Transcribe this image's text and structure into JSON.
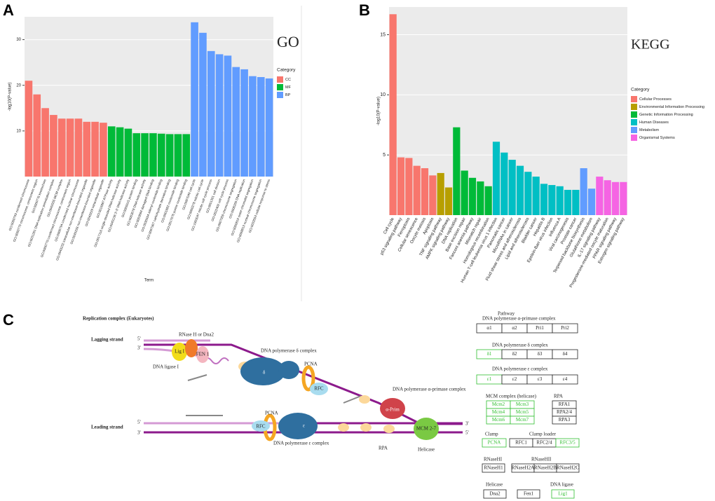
{
  "panel_labels": [
    "A",
    "B",
    "C"
  ],
  "chart_data": [
    {
      "type": "bar",
      "annotation": "GO",
      "y_label": "-log10(P-value)",
      "x_label": "Term",
      "legend_title": "Category",
      "categories": [
        "GO:0000793 condensed chromosome",
        "GO:0000775 chromosome, centromeric region",
        "GO:0000776 kinetochore",
        "GO:0031261 DNA replication preinitiation complex",
        "GO:0042555 MCM complex",
        "GO:0000779 condensed chromosome, centromeric region",
        "GO:0000794 condensed nuclear chromosome",
        "GO:0043232 intracellular non-membrane-bounded organelle",
        "GO:0043228 non-membrane-bounded organelle",
        "GO:0043229 intracellular organelle",
        "GO:0016887 ATPase activity",
        "GO:0017116 single-stranded DNA helicase activity",
        "GO:0043138 3'-5' DNA helicase activity",
        "GO:0005515 protein binding",
        "GO:0003678 DNA helicase activity",
        "GO:0003684 damaged DNA binding",
        "GO:0030554 adenyl nucleotide binding",
        "GO:0097367 carbohydrate derivative binding",
        "GO:0001882 nucleoside binding",
        "GO:0017076 purine nucleotide binding",
        "GO:0007049 cell cycle",
        "GO:0000278 mitotic cell cycle",
        "GO:1903047 mitotic cell cycle process",
        "GO:0051301 cell division",
        "GO:0022402 cell cycle process",
        "GO:0007059 chromosome segregation",
        "GO:0006260 DNA replication",
        "GO:0000819 sister chromatid segregation",
        "GO:0098813 nuclear chromosome segregation",
        "GO:0033554 cellular response to stress"
      ],
      "series": [
        {
          "name": "CC",
          "color": "#f8766d",
          "values": [
            21,
            18,
            15,
            13.5,
            12.7,
            12.7,
            12.7,
            12,
            12,
            11.8,
            null,
            null,
            null,
            null,
            null,
            null,
            null,
            null,
            null,
            null,
            null,
            null,
            null,
            null,
            null,
            null,
            null,
            null,
            null,
            null
          ]
        },
        {
          "name": "MF",
          "color": "#00ba38",
          "values": [
            null,
            null,
            null,
            null,
            null,
            null,
            null,
            null,
            null,
            null,
            11,
            10.8,
            10.5,
            9.5,
            9.5,
            9.5,
            9.4,
            9.3,
            9.3,
            9.3,
            null,
            null,
            null,
            null,
            null,
            null,
            null,
            null,
            null,
            null
          ]
        },
        {
          "name": "BP",
          "color": "#619cff",
          "values": [
            null,
            null,
            null,
            null,
            null,
            null,
            null,
            null,
            null,
            null,
            null,
            null,
            null,
            null,
            null,
            null,
            null,
            null,
            null,
            null,
            33.8,
            31.5,
            27.5,
            26.8,
            26.5,
            24,
            23.5,
            22,
            21.8,
            21.5
          ]
        }
      ],
      "ylim": [
        0,
        35
      ],
      "yticks": [
        10,
        20,
        30
      ],
      "grid": true
    },
    {
      "type": "bar",
      "annotation": "KEGG",
      "y_label": "-log10(P-value)",
      "legend_title": "Category",
      "categories": [
        "Cell cycle",
        "p53 signaling pathway",
        "Ferroptosis",
        "Cellular senescence",
        "Oocyte meiosis",
        "Apoptosis",
        "TNF signaling pathway",
        "AMPK signaling pathway",
        "DNA replication",
        "Base excision repair",
        "Fanconi anemia pathway",
        "Mismatch repair",
        "Homologous recombination",
        "Human T-cell leukemia virus 1 infection",
        "Pancreatic cancer",
        "MicroRNAs in cancer",
        "Fluid shear stress and atherosclerosis",
        "Lipid and atherosclerosis",
        "Bladder cancer",
        "Hepatitis B",
        "Epstein-Barr virus infection",
        "Influenza A",
        "Viral carcinogenesis",
        "Prostate cancer",
        "Terpenoid backbone biosynthesis",
        "Glutathione metabolism",
        "IL-17 signaling pathway",
        "Progesterone-mediated oocyte maturation",
        "PPAR signaling pathway",
        "Estrogen signaling pathway"
      ],
      "series": [
        {
          "name": "Cellular Processes",
          "color": "#f8766d",
          "values": [
            16.7,
            4.8,
            4.75,
            4.1,
            3.9,
            3.3,
            null,
            null,
            null,
            null,
            null,
            null,
            null,
            null,
            null,
            null,
            null,
            null,
            null,
            null,
            null,
            null,
            null,
            null,
            null,
            null,
            null,
            null,
            null,
            null
          ]
        },
        {
          "name": "Environmental Information Processing",
          "color": "#b79f00",
          "values": [
            null,
            null,
            null,
            null,
            null,
            null,
            3.5,
            2.3,
            null,
            null,
            null,
            null,
            null,
            null,
            null,
            null,
            null,
            null,
            null,
            null,
            null,
            null,
            null,
            null,
            null,
            null,
            null,
            null,
            null,
            null
          ]
        },
        {
          "name": "Genetic Information Processing",
          "color": "#00ba38",
          "values": [
            null,
            null,
            null,
            null,
            null,
            null,
            null,
            null,
            7.3,
            3.7,
            3.1,
            2.8,
            2.4,
            null,
            null,
            null,
            null,
            null,
            null,
            null,
            null,
            null,
            null,
            null,
            null,
            null,
            null,
            null,
            null,
            null
          ]
        },
        {
          "name": "Human Diseases",
          "color": "#00bfc4",
          "values": [
            null,
            null,
            null,
            null,
            null,
            null,
            null,
            null,
            null,
            null,
            null,
            null,
            null,
            6.1,
            5.2,
            4.6,
            4.1,
            3.6,
            3.2,
            2.6,
            2.5,
            2.4,
            2.1,
            2.1,
            null,
            null,
            null,
            null,
            null,
            null
          ]
        },
        {
          "name": "Metabolism",
          "color": "#619cff",
          "values": [
            null,
            null,
            null,
            null,
            null,
            null,
            null,
            null,
            null,
            null,
            null,
            null,
            null,
            null,
            null,
            null,
            null,
            null,
            null,
            null,
            null,
            null,
            null,
            null,
            3.9,
            2.2,
            null,
            null,
            null,
            null
          ]
        },
        {
          "name": "Organismal Systems",
          "color": "#f564e3",
          "values": [
            null,
            null,
            null,
            null,
            null,
            null,
            null,
            null,
            null,
            null,
            null,
            null,
            null,
            null,
            null,
            null,
            null,
            null,
            null,
            null,
            null,
            null,
            null,
            null,
            null,
            null,
            3.2,
            2.9,
            2.75,
            2.75
          ]
        }
      ],
      "ylim": [
        0,
        17.3
      ],
      "yticks": [
        5,
        10,
        15
      ],
      "grid": true
    }
  ],
  "diagram": {
    "labels": [
      "Replication complex (Eukaryotes)",
      "Lagging strand",
      "Leading strand",
      "5'",
      "3'",
      "5'",
      "3'",
      "3'",
      "5'",
      "RNase H or Dna2",
      "Lig I",
      "FEN 1",
      "DNA ligase I",
      "DNA polymerase δ complex",
      "δ",
      "PCNA",
      "RFC",
      "DNA polymerase α-primase complex",
      "α-Prim",
      "MCM 2-7",
      "Helicase",
      "RPA",
      "PCNA",
      "RFC",
      "ε",
      "DNA polymerase ε complex",
      "Pathway"
    ],
    "highlight_color": "#2fbf2f",
    "groups": [
      {
        "title": "DNA polymerase α-primase complex",
        "items": [
          {
            "label": "α1",
            "highlighted": false
          },
          {
            "label": "α2",
            "highlighted": false
          },
          {
            "label": "Pri1",
            "highlighted": false
          },
          {
            "label": "Pri2",
            "highlighted": false
          }
        ]
      },
      {
        "title": "DNA polymerase δ complex",
        "items": [
          {
            "label": "δ1",
            "highlighted": true
          },
          {
            "label": "δ2",
            "highlighted": false
          },
          {
            "label": "δ3",
            "highlighted": false
          },
          {
            "label": "δ4",
            "highlighted": false
          }
        ]
      },
      {
        "title": "DNA polymerase ε complex",
        "items": [
          {
            "label": "ε1",
            "highlighted": true
          },
          {
            "label": "ε2",
            "highlighted": false
          },
          {
            "label": "ε3",
            "highlighted": false
          },
          {
            "label": "ε4",
            "highlighted": false
          }
        ]
      },
      {
        "title": "MCM complex (helicase)",
        "items": [
          {
            "label": "Mcm2",
            "highlighted": true
          },
          {
            "label": "Mcm3",
            "highlighted": true
          },
          {
            "label": "Mcm4",
            "highlighted": true
          },
          {
            "label": "Mcm5",
            "highlighted": true
          },
          {
            "label": "Mcm6",
            "highlighted": true
          },
          {
            "label": "Mcm7",
            "highlighted": true
          }
        ]
      },
      {
        "title": "RPA",
        "items": [
          {
            "label": "RFA1",
            "highlighted": false
          },
          {
            "label": "RPA2/4",
            "highlighted": false
          },
          {
            "label": "RPA3",
            "highlighted": false
          }
        ]
      },
      {
        "title": "Clamp",
        "items": [
          {
            "label": "PCNA",
            "highlighted": true
          }
        ]
      },
      {
        "title": "Clamp loader",
        "items": [
          {
            "label": "RFC1",
            "highlighted": false
          },
          {
            "label": "RFC2/4",
            "highlighted": false
          },
          {
            "label": "RFC3/5",
            "highlighted": true
          }
        ]
      },
      {
        "title": "RNaseHI",
        "items": [
          {
            "label": "RNaseH1",
            "highlighted": false
          }
        ]
      },
      {
        "title": "RNaseHII",
        "items": [
          {
            "label": "RNaseH2A",
            "highlighted": false
          },
          {
            "label": "RNaseH2B",
            "highlighted": false
          },
          {
            "label": "RNaseH2C",
            "highlighted": false
          }
        ]
      },
      {
        "title": "Helicase",
        "items": [
          {
            "label": "Dna2",
            "highlighted": false
          }
        ]
      },
      {
        "items": [
          {
            "label": "Fen1",
            "highlighted": false
          }
        ]
      },
      {
        "title": "DNA ligase",
        "items": [
          {
            "label": "Lig1",
            "highlighted": true
          }
        ]
      }
    ]
  }
}
